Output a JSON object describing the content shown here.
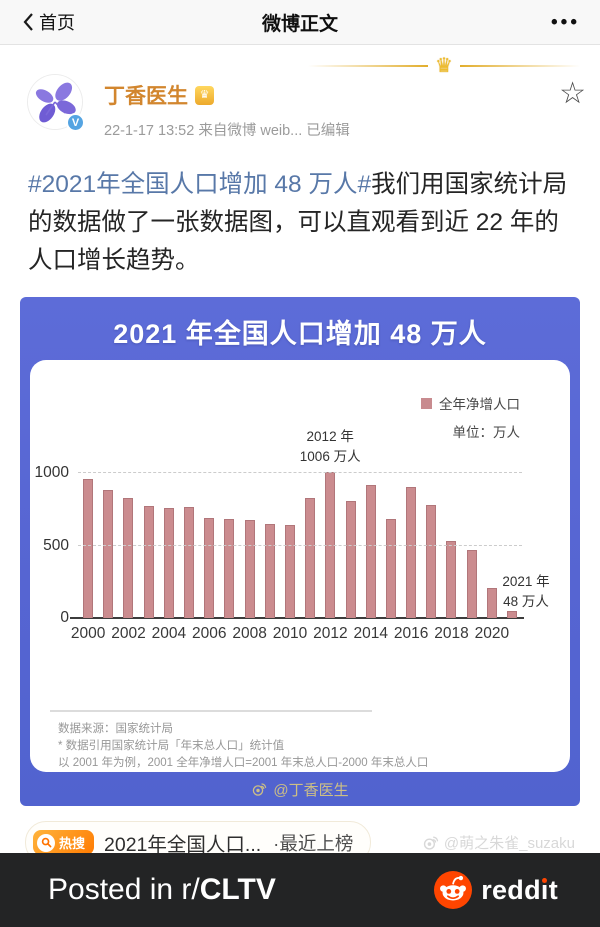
{
  "nav": {
    "back_label": "首页",
    "title": "微博正文",
    "more_glyph": "•••"
  },
  "post": {
    "author": {
      "name": "丁香医生",
      "avatar_icon": "dxy-lilac-logo",
      "verified_glyph": "V",
      "vip_badge_glyph": "♛"
    },
    "meta": "22-1-17 13:52 来自微博 weib... 已编辑",
    "crown_glyph": "♛",
    "favorite_glyph": "☆",
    "hashtag": "#2021年全国人口增加 48 万人#",
    "body": "我们用国家统计局的数据做了一张数据图，可以直观看到近 22 年的人口增长趋势。"
  },
  "figure": {
    "title": "2021 年全国人口增加 48 万人",
    "legend_label": "全年净增人口",
    "unit_label": "单位：万人",
    "anno_2012_line1": "2012 年",
    "anno_2012_line2": "1006 万人",
    "anno_2021_line1": "2021 年",
    "anno_2021_line2": "48 万人",
    "footnotes": [
      "数据来源：国家统计局",
      "* 数据引用国家统计局「年末总人口」统计值",
      "以 2001 年为例，2001 全年净增人口=2001 年末总人口-2000 年末总人口"
    ],
    "watermark": "@丁香医生",
    "colors": {
      "header_bg": "#5a69d4",
      "bar": "#cb8c8f",
      "bar_border": "#b1767a"
    }
  },
  "chart_data": {
    "type": "bar",
    "title": "2021 年全国人口增加 48 万人",
    "legend": [
      "全年净增人口"
    ],
    "legend_position": "top-right",
    "unit": "万人",
    "ylabel": "万人",
    "xlabel": "",
    "x": [
      2000,
      2001,
      2002,
      2003,
      2004,
      2005,
      2006,
      2007,
      2008,
      2009,
      2010,
      2011,
      2012,
      2013,
      2014,
      2015,
      2016,
      2017,
      2018,
      2019,
      2020,
      2021
    ],
    "values": [
      957,
      884,
      826,
      774,
      761,
      768,
      692,
      681,
      673,
      648,
      641,
      825,
      1006,
      804,
      920,
      680,
      906,
      779,
      530,
      467,
      204,
      48
    ],
    "xticks": [
      2000,
      2002,
      2004,
      2006,
      2008,
      2010,
      2012,
      2014,
      2016,
      2018,
      2020
    ],
    "yticks": [
      0,
      500,
      1000
    ],
    "ylim": [
      0,
      1050
    ],
    "grid": "horizontal-dashed",
    "annotations": [
      {
        "x": 2012,
        "text": "2012 年 1006 万人"
      },
      {
        "x": 2021,
        "text": "2021 年 48 万人"
      }
    ]
  },
  "hot_search": {
    "badge_label": "热搜",
    "badge_icon": "magnifier-icon",
    "topic": "2021年全国人口...",
    "suffix": "·最近上榜"
  },
  "page_watermark": "@萌之朱雀_suzaku",
  "reddit_banner": {
    "prefix": "Posted in r/",
    "subreddit": "CLTV",
    "brand": "reddit",
    "logo_icon": "reddit-snoo",
    "colors": {
      "bg": "#232425",
      "accent": "#ff4500"
    }
  }
}
